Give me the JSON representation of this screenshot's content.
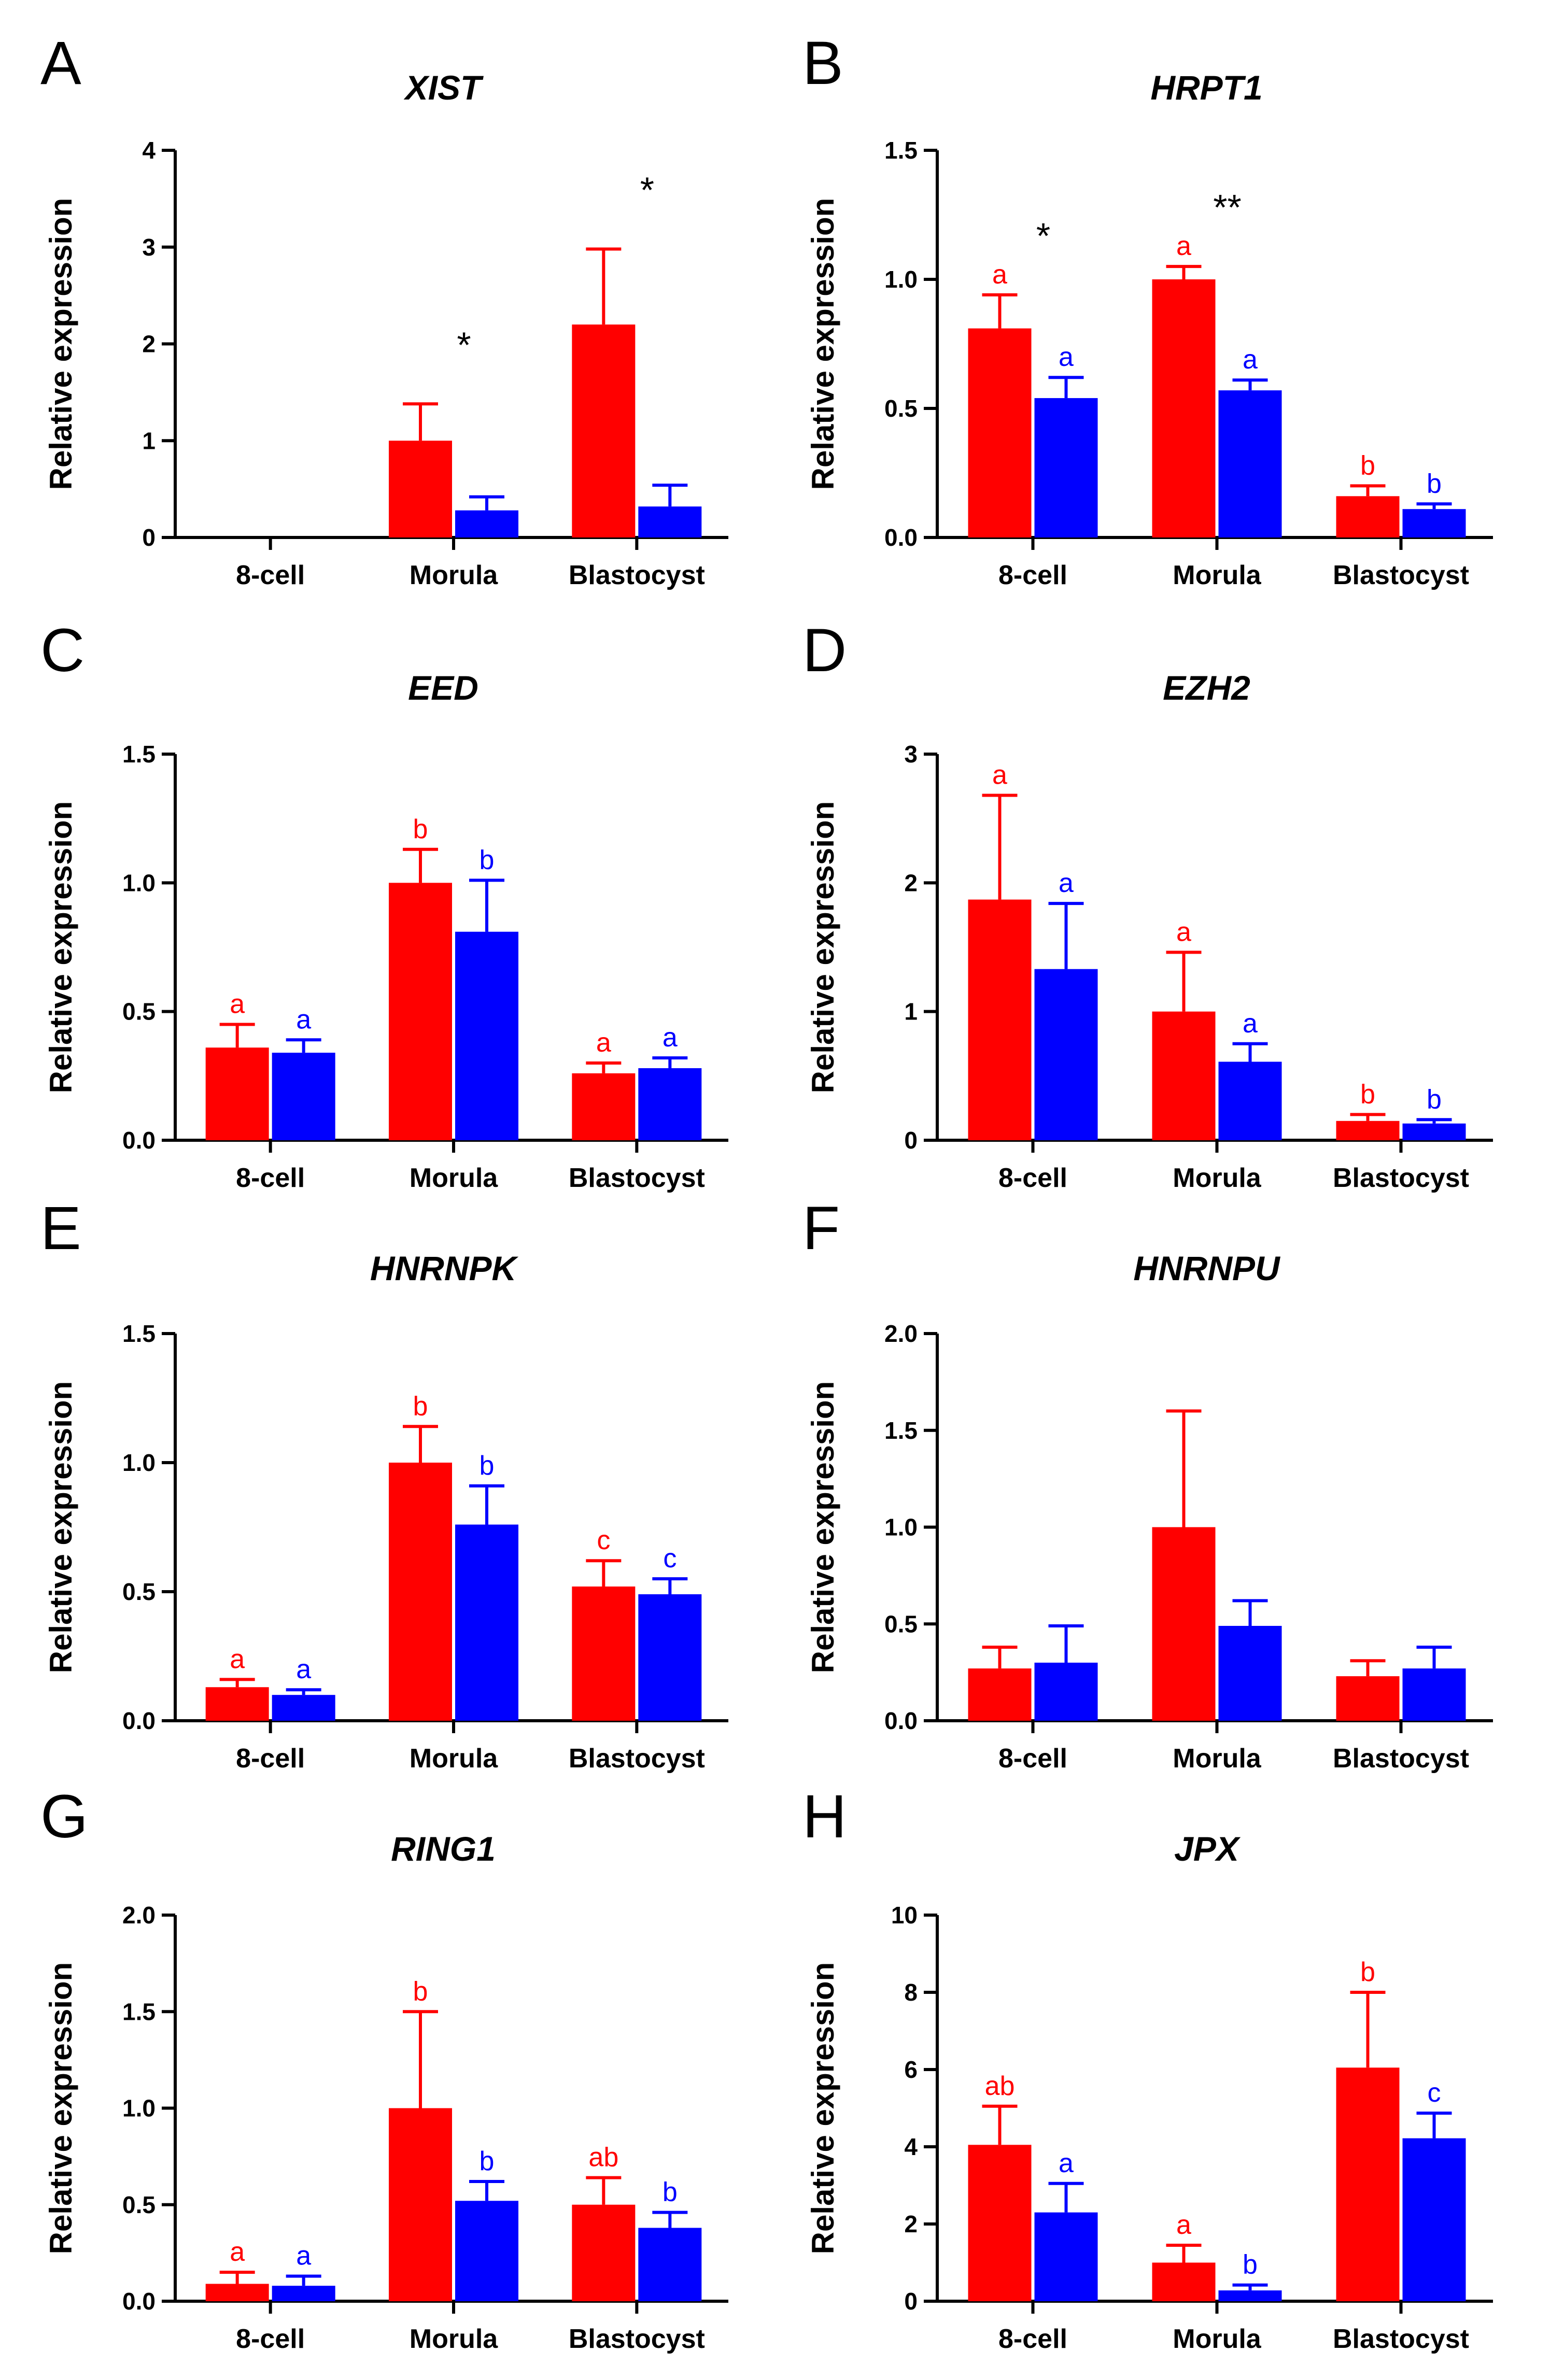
{
  "colors": {
    "series_a": "#ff0000",
    "series_b": "#0000ff",
    "axis": "#000000"
  },
  "chart_data": [
    {
      "type": "bar",
      "panel": "A",
      "title": "XIST",
      "ylabel": "Relative expression",
      "xlabel": "",
      "categories": [
        "8-cell",
        "Morula",
        "Blastocyst"
      ],
      "ylim": [
        0,
        4
      ],
      "yticks": [
        0,
        1,
        2,
        3,
        4
      ],
      "ytick_labels": [
        "0",
        "1",
        "2",
        "3",
        "4"
      ],
      "series": [
        {
          "name": "red",
          "values": [
            0,
            1.0,
            2.2
          ],
          "errors": [
            0,
            0.38,
            0.78
          ],
          "labels": [
            "",
            "",
            ""
          ]
        },
        {
          "name": "blue",
          "values": [
            0,
            0.28,
            0.32
          ],
          "errors": [
            0,
            0.14,
            0.22
          ],
          "labels": [
            "",
            "",
            ""
          ]
        }
      ],
      "significance": [
        "",
        "*",
        "*"
      ]
    },
    {
      "type": "bar",
      "panel": "B",
      "title": "HRPT1",
      "ylabel": "Relative expression",
      "xlabel": "",
      "categories": [
        "8-cell",
        "Morula",
        "Blastocyst"
      ],
      "ylim": [
        0,
        1.5
      ],
      "yticks": [
        0,
        0.5,
        1.0,
        1.5
      ],
      "ytick_labels": [
        "0.0",
        "0.5",
        "1.0",
        "1.5"
      ],
      "series": [
        {
          "name": "red",
          "values": [
            0.81,
            1.0,
            0.16
          ],
          "errors": [
            0.13,
            0.05,
            0.04
          ],
          "labels": [
            "a",
            "a",
            "b"
          ]
        },
        {
          "name": "blue",
          "values": [
            0.54,
            0.57,
            0.11
          ],
          "errors": [
            0.08,
            0.04,
            0.02
          ],
          "labels": [
            "a",
            "a",
            "b"
          ]
        }
      ],
      "significance": [
        "*",
        "**",
        ""
      ]
    },
    {
      "type": "bar",
      "panel": "C",
      "title": "EED",
      "ylabel": "Relative expression",
      "xlabel": "",
      "categories": [
        "8-cell",
        "Morula",
        "Blastocyst"
      ],
      "ylim": [
        0,
        1.5
      ],
      "yticks": [
        0,
        0.5,
        1.0,
        1.5
      ],
      "ytick_labels": [
        "0.0",
        "0.5",
        "1.0",
        "1.5"
      ],
      "series": [
        {
          "name": "red",
          "values": [
            0.36,
            1.0,
            0.26
          ],
          "errors": [
            0.09,
            0.13,
            0.04
          ],
          "labels": [
            "a",
            "b",
            "a"
          ]
        },
        {
          "name": "blue",
          "values": [
            0.34,
            0.81,
            0.28
          ],
          "errors": [
            0.05,
            0.2,
            0.04
          ],
          "labels": [
            "a",
            "b",
            "a"
          ]
        }
      ],
      "significance": [
        "",
        "",
        ""
      ]
    },
    {
      "type": "bar",
      "panel": "D",
      "title": "EZH2",
      "ylabel": "Relative expression",
      "xlabel": "",
      "categories": [
        "8-cell",
        "Morula",
        "Blastocyst"
      ],
      "ylim": [
        0,
        3
      ],
      "yticks": [
        0,
        1,
        2,
        3
      ],
      "ytick_labels": [
        "0",
        "1",
        "2",
        "3"
      ],
      "series": [
        {
          "name": "red",
          "values": [
            1.87,
            1.0,
            0.15
          ],
          "errors": [
            0.81,
            0.46,
            0.05
          ],
          "labels": [
            "a",
            "a",
            "b"
          ]
        },
        {
          "name": "blue",
          "values": [
            1.33,
            0.61,
            0.13
          ],
          "errors": [
            0.51,
            0.14,
            0.03
          ],
          "labels": [
            "a",
            "a",
            "b"
          ]
        }
      ],
      "significance": [
        "",
        "",
        ""
      ]
    },
    {
      "type": "bar",
      "panel": "E",
      "title": "HNRNPK",
      "ylabel": "Relative expression",
      "xlabel": "",
      "categories": [
        "8-cell",
        "Morula",
        "Blastocyst"
      ],
      "ylim": [
        0,
        1.5
      ],
      "yticks": [
        0,
        0.5,
        1.0,
        1.5
      ],
      "ytick_labels": [
        "0.0",
        "0.5",
        "1.0",
        "1.5"
      ],
      "series": [
        {
          "name": "red",
          "values": [
            0.13,
            1.0,
            0.52
          ],
          "errors": [
            0.03,
            0.14,
            0.1
          ],
          "labels": [
            "a",
            "b",
            "c"
          ]
        },
        {
          "name": "blue",
          "values": [
            0.1,
            0.76,
            0.49
          ],
          "errors": [
            0.02,
            0.15,
            0.06
          ],
          "labels": [
            "a",
            "b",
            "c"
          ]
        }
      ],
      "significance": [
        "",
        "",
        ""
      ]
    },
    {
      "type": "bar",
      "panel": "F",
      "title": "HNRNPU",
      "ylabel": "Relative expression",
      "xlabel": "",
      "categories": [
        "8-cell",
        "Morula",
        "Blastocyst"
      ],
      "ylim": [
        0,
        2
      ],
      "yticks": [
        0,
        0.5,
        1.0,
        1.5,
        2.0
      ],
      "ytick_labels": [
        "0.0",
        "0.5",
        "1.0",
        "1.5",
        "2.0"
      ],
      "series": [
        {
          "name": "red",
          "values": [
            0.27,
            1.0,
            0.23
          ],
          "errors": [
            0.11,
            0.6,
            0.08
          ],
          "labels": [
            "",
            "",
            ""
          ]
        },
        {
          "name": "blue",
          "values": [
            0.3,
            0.49,
            0.27
          ],
          "errors": [
            0.19,
            0.13,
            0.11
          ],
          "labels": [
            "",
            "",
            ""
          ]
        }
      ],
      "significance": [
        "",
        "",
        ""
      ]
    },
    {
      "type": "bar",
      "panel": "G",
      "title": "RING1",
      "ylabel": "Relative expression",
      "xlabel": "",
      "categories": [
        "8-cell",
        "Morula",
        "Blastocyst"
      ],
      "ylim": [
        0,
        2
      ],
      "yticks": [
        0,
        0.5,
        1.0,
        1.5,
        2.0
      ],
      "ytick_labels": [
        "0.0",
        "0.5",
        "1.0",
        "1.5",
        "2.0"
      ],
      "series": [
        {
          "name": "red",
          "values": [
            0.09,
            1.0,
            0.5
          ],
          "errors": [
            0.06,
            0.5,
            0.14
          ],
          "labels": [
            "a",
            "b",
            "ab"
          ]
        },
        {
          "name": "blue",
          "values": [
            0.08,
            0.52,
            0.38
          ],
          "errors": [
            0.05,
            0.1,
            0.08
          ],
          "labels": [
            "a",
            "b",
            "b"
          ]
        }
      ],
      "significance": [
        "",
        "",
        ""
      ]
    },
    {
      "type": "bar",
      "panel": "H",
      "title": "JPX",
      "ylabel": "Relative expression",
      "xlabel": "",
      "categories": [
        "8-cell",
        "Morula",
        "Blastocyst"
      ],
      "ylim": [
        0,
        10
      ],
      "yticks": [
        0,
        2,
        4,
        6,
        8,
        10
      ],
      "ytick_labels": [
        "0",
        "2",
        "4",
        "6",
        "8",
        "10"
      ],
      "series": [
        {
          "name": "red",
          "values": [
            4.05,
            1.0,
            6.05
          ],
          "errors": [
            1.0,
            0.45,
            1.95
          ],
          "labels": [
            "ab",
            "a",
            "b"
          ]
        },
        {
          "name": "blue",
          "values": [
            2.3,
            0.28,
            4.22
          ],
          "errors": [
            0.75,
            0.14,
            0.65
          ],
          "labels": [
            "a",
            "b",
            "c"
          ]
        }
      ],
      "significance": [
        "",
        "",
        ""
      ]
    }
  ]
}
